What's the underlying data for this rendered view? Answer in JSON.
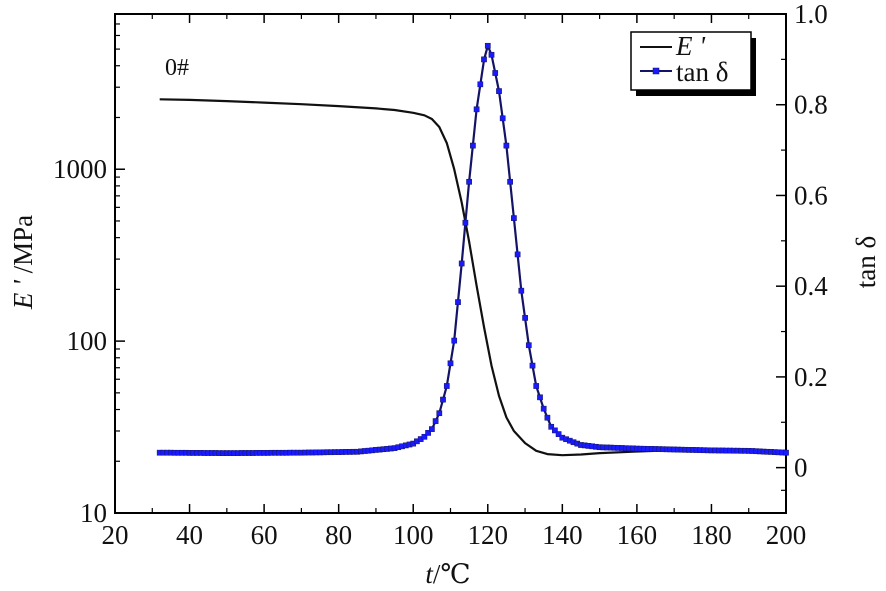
{
  "chart_data": {
    "type": "line",
    "annotation": "0#",
    "x_axis": {
      "label_var": "t",
      "label_unit": "/℃",
      "range": [
        20,
        200
      ],
      "ticks": [
        20,
        40,
        60,
        80,
        100,
        120,
        140,
        160,
        180,
        200
      ]
    },
    "y_left": {
      "label_var": "E '",
      "label_unit": " /MPa",
      "scale": "log",
      "range": [
        10,
        8000
      ],
      "ticks": [
        10,
        100,
        1000
      ]
    },
    "y_right": {
      "label": "tan δ",
      "range": [
        -0.1,
        1.0
      ],
      "ticks": [
        0,
        0.2,
        0.4,
        0.6,
        0.8,
        1.0
      ],
      "tick_labels": [
        "0",
        "0.2",
        "0.4",
        "0.6",
        "0.8",
        "1.0"
      ]
    },
    "legend": {
      "position": "top-right",
      "entries": [
        {
          "label_var": "E '",
          "series": "storage_modulus"
        },
        {
          "label_var": "tan δ",
          "series": "tan_delta"
        }
      ]
    },
    "series": [
      {
        "key": "storage_modulus",
        "axis": "left",
        "color": "#111111",
        "style": "line",
        "x": [
          32,
          40,
          50,
          60,
          70,
          80,
          90,
          95,
          100,
          103,
          105,
          107,
          109,
          111,
          113,
          115,
          117,
          119,
          121,
          123,
          125,
          127,
          130,
          133,
          136,
          140,
          145,
          150,
          160,
          170,
          180,
          190,
          200
        ],
        "y": [
          2550,
          2530,
          2490,
          2440,
          2390,
          2330,
          2260,
          2210,
          2130,
          2060,
          1960,
          1760,
          1420,
          1000,
          640,
          380,
          210,
          120,
          72,
          48,
          36,
          30,
          25.5,
          23,
          22,
          21.7,
          21.9,
          22.3,
          22.8,
          23.2,
          23.4,
          23.3,
          22.9
        ]
      },
      {
        "key": "tan_delta",
        "axis": "right",
        "color": "#1a1aff",
        "line_color": "#141466",
        "style": "line+markers",
        "x": [
          32,
          50,
          70,
          85,
          95,
          100,
          103,
          105,
          107,
          109,
          111,
          113,
          115,
          117,
          119,
          120,
          121,
          123,
          125,
          127,
          129,
          131,
          133,
          135,
          137,
          140,
          143,
          145,
          150,
          160,
          170,
          180,
          190,
          200
        ],
        "y": [
          0.033,
          0.032,
          0.033,
          0.035,
          0.043,
          0.053,
          0.068,
          0.085,
          0.12,
          0.18,
          0.28,
          0.45,
          0.63,
          0.79,
          0.9,
          0.93,
          0.91,
          0.83,
          0.71,
          0.55,
          0.39,
          0.27,
          0.18,
          0.13,
          0.09,
          0.066,
          0.056,
          0.05,
          0.045,
          0.042,
          0.04,
          0.038,
          0.037,
          0.033
        ]
      }
    ]
  }
}
